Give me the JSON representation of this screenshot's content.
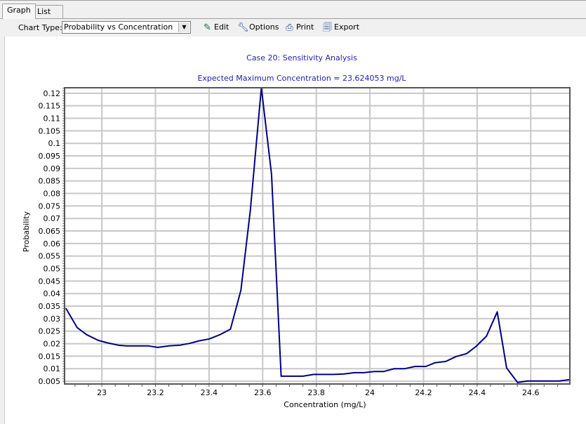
{
  "tabs": [
    {
      "label": "Graph",
      "active": true
    },
    {
      "label": "List",
      "active": false
    }
  ],
  "toolbar": {
    "chart_type_label": "Chart Type:",
    "chart_type_value": "Probability vs Concentration",
    "edit_label": "Edit",
    "options_label": "Options",
    "print_label": "Print",
    "export_label": "Export"
  },
  "colors": {
    "line": "#000080",
    "title": "#1f1fb0",
    "grid": "#c8c8c8"
  },
  "chart_data": {
    "type": "line",
    "title": "Case 20: Sensitivity Analysis",
    "subtitle": "Expected Maximum Concentration = 23.624053 mg/L",
    "xlabel": "Concentration (mg/L)",
    "ylabel": "Probability",
    "xlim": [
      22.861,
      24.746
    ],
    "ylim": [
      0.0039,
      0.1222
    ],
    "grid": true,
    "xticks": [
      23,
      23.2,
      23.4,
      23.6,
      23.8,
      24,
      24.2,
      24.4,
      24.6
    ],
    "xtick_labels": [
      "23",
      "23.2",
      "23.4",
      "23.6",
      "23.8",
      "24",
      "24.2",
      "24.4",
      "24.6"
    ],
    "yticks": [
      0.005,
      0.01,
      0.015,
      0.02,
      0.025,
      0.03,
      0.035,
      0.04,
      0.045,
      0.05,
      0.055,
      0.06,
      0.065,
      0.07,
      0.075,
      0.08,
      0.085,
      0.09,
      0.095,
      0.1,
      0.105,
      0.11,
      0.115,
      0.12
    ],
    "ytick_labels": [
      "0.005",
      "0.01",
      "0.015",
      "0.02",
      "0.025",
      "0.03",
      "0.035",
      "0.04",
      "0.045",
      "0.05",
      "0.055",
      "0.06",
      "0.065",
      "0.07",
      "0.075",
      "0.08",
      "0.085",
      "0.09",
      "0.095",
      "0.1",
      "0.105",
      "0.11",
      "0.115",
      "0.12"
    ],
    "x": [
      22.866,
      22.908,
      22.943,
      22.987,
      23.022,
      23.061,
      23.092,
      23.134,
      23.175,
      23.209,
      23.249,
      23.292,
      23.327,
      23.362,
      23.401,
      23.441,
      23.48,
      23.519,
      23.554,
      23.595,
      23.633,
      23.669,
      23.707,
      23.751,
      23.79,
      23.827,
      23.864,
      23.903,
      23.942,
      23.977,
      24.016,
      24.052,
      24.091,
      24.13,
      24.169,
      24.209,
      24.243,
      24.283,
      24.322,
      24.361,
      24.396,
      24.435,
      24.475,
      24.51,
      24.551,
      24.588,
      24.626,
      24.665,
      24.706,
      24.743
    ],
    "y": [
      0.0341,
      0.0264,
      0.0236,
      0.0213,
      0.0203,
      0.0194,
      0.0191,
      0.0191,
      0.0191,
      0.0185,
      0.0191,
      0.0194,
      0.0201,
      0.0211,
      0.0219,
      0.0236,
      0.0258,
      0.0414,
      0.0732,
      0.1222,
      0.0877,
      0.007,
      0.007,
      0.007,
      0.0077,
      0.0077,
      0.0077,
      0.0079,
      0.0084,
      0.0084,
      0.0089,
      0.0089,
      0.01,
      0.01,
      0.0109,
      0.0109,
      0.0124,
      0.0129,
      0.0149,
      0.016,
      0.0189,
      0.023,
      0.0327,
      0.0103,
      0.0045,
      0.0051,
      0.0051,
      0.0051,
      0.0051,
      0.0056
    ]
  }
}
